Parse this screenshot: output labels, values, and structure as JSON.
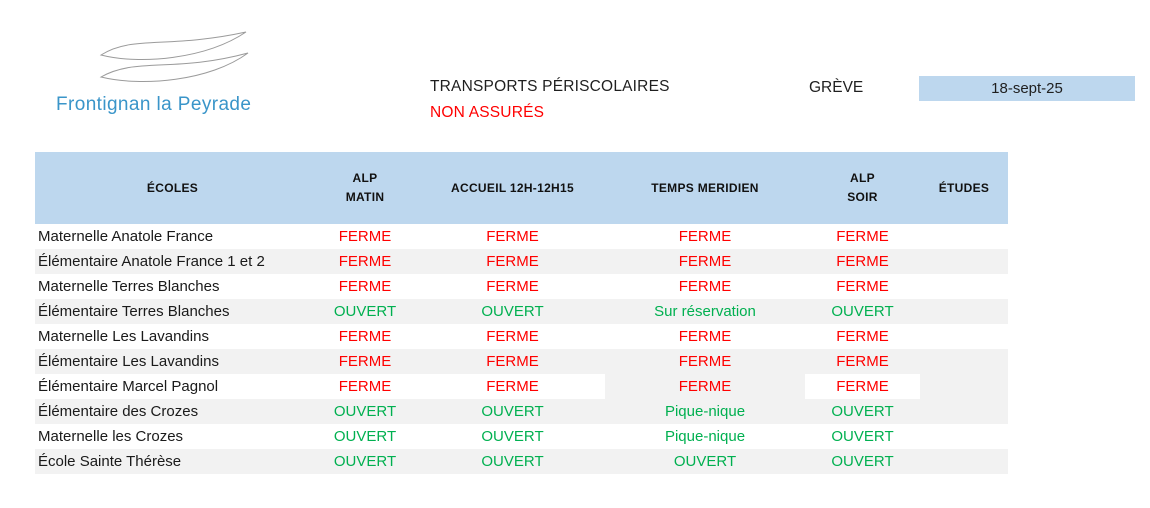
{
  "logo": {
    "name": "Frontignan la Peyrade",
    "text_color": "#3a95c9",
    "waves_icon_color": "#9b9b9b"
  },
  "header": {
    "title": "TRANSPORTS PÉRISCOLAIRES",
    "subtitle": "NON ASSURÉS",
    "subtitle_color": "#ff0000",
    "reason": "GRÈVE",
    "date": "18-sept-25",
    "date_box_color": "#bdd7ee"
  },
  "table": {
    "header_bg_color": "#bdd7ee",
    "stripe_color": "#f2f2f2",
    "closed_color": "#ff0000",
    "open_color": "#00b050",
    "columns": [
      {
        "key": "ecoles",
        "label": "ÉCOLES"
      },
      {
        "key": "alp-matin",
        "label": "ALP\nMATIN"
      },
      {
        "key": "accueil-12h-12h15",
        "label": "ACCUEIL 12H-12H15"
      },
      {
        "key": "temps-meridien",
        "label": "TEMPS MERIDIEN"
      },
      {
        "key": "alp-soir",
        "label": "ALP\nSOIR"
      },
      {
        "key": "etudes",
        "label": "ÉTUDES"
      }
    ],
    "rows": [
      {
        "school": "Maternelle Anatole France",
        "statuses": [
          "FERME",
          "FERME",
          "FERME",
          "FERME",
          ""
        ]
      },
      {
        "school": "Élémentaire Anatole France 1 et 2",
        "statuses": [
          "FERME",
          "FERME",
          "FERME",
          "FERME",
          ""
        ]
      },
      {
        "school": "Maternelle Terres Blanches",
        "statuses": [
          "FERME",
          "FERME",
          "FERME",
          "FERME",
          ""
        ]
      },
      {
        "school": "Élémentaire Terres Blanches",
        "statuses": [
          "OUVERT",
          "OUVERT",
          "Sur réservation",
          "OUVERT",
          ""
        ]
      },
      {
        "school": "Maternelle Les Lavandins",
        "statuses": [
          "FERME",
          "FERME",
          "FERME",
          "FERME",
          ""
        ]
      },
      {
        "school": "Élémentaire Les Lavandins",
        "statuses": [
          "FERME",
          "FERME",
          "FERME",
          "FERME",
          ""
        ]
      },
      {
        "school": "Élémentaire Marcel Pagnol",
        "statuses": [
          "FERME",
          "FERME",
          "FERME",
          "FERME",
          ""
        ],
        "gray_cells": [
          3,
          5
        ]
      },
      {
        "school": "Élémentaire des Crozes",
        "statuses": [
          "OUVERT",
          "OUVERT",
          "Pique-nique",
          "OUVERT",
          ""
        ]
      },
      {
        "school": "Maternelle les Crozes",
        "statuses": [
          "OUVERT",
          "OUVERT",
          "Pique-nique",
          "OUVERT",
          ""
        ]
      },
      {
        "school": "École Sainte Thérèse",
        "statuses": [
          "OUVERT",
          "OUVERT",
          "OUVERT",
          "OUVERT",
          ""
        ]
      }
    ]
  }
}
